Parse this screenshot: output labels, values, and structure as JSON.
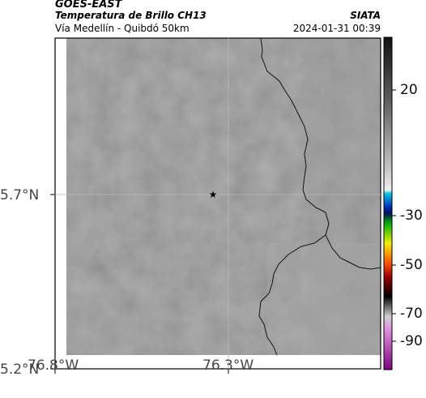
{
  "header": {
    "satellite": "GOES-EAST",
    "product": "Temperatura de Brillo CH13",
    "region": "Vía Medellín - Quibdó 50km",
    "agency": "SIATA",
    "timestamp": "2024-01-31 00:39"
  },
  "axes": {
    "lat_ticks": [
      "5.7°N",
      "5.2°N"
    ],
    "lon_ticks": [
      "76.8°W",
      "76.3°W"
    ]
  },
  "colorbar": {
    "ticks": [
      "20",
      "-30",
      "-50",
      "-70",
      "-90"
    ]
  },
  "map": {
    "marker": "star-icon",
    "base_color": "#858585"
  }
}
